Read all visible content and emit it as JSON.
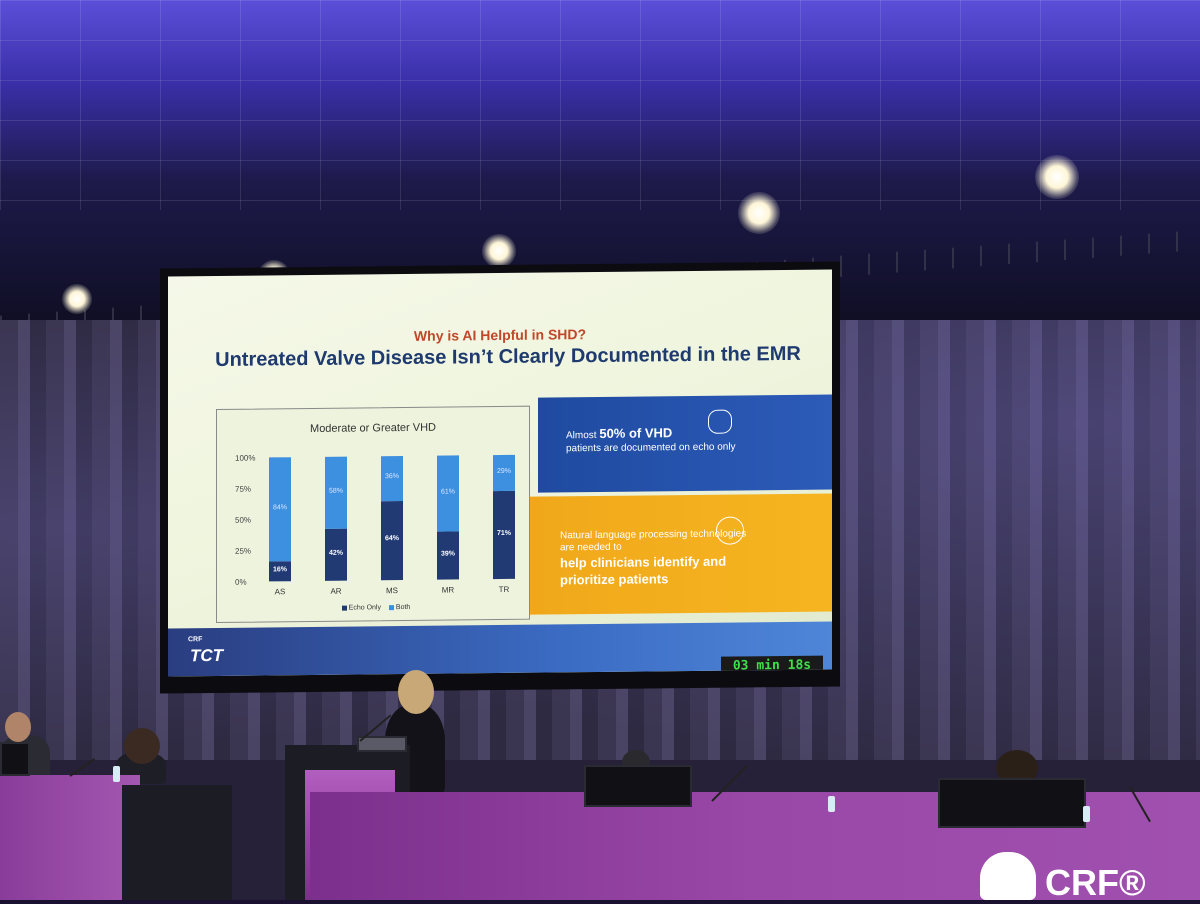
{
  "slide": {
    "subtitle": "Why is AI Helpful in SHD?",
    "title": "Untreated Valve Disease Isn’t Clearly Documented in the EMR",
    "panel_blue": {
      "lead": "Almost ",
      "highlight": "50% of VHD",
      "rest": "patients are documented on echo only"
    },
    "panel_gold": {
      "small": "Natural language processing technologies are needed to",
      "big": "help clinicians identify and prioritize patients"
    },
    "logo_small": "CRF",
    "logo_main": "TCT",
    "timer": "03 min 18s"
  },
  "chart_data": {
    "type": "bar",
    "title": "Moderate or Greater VHD",
    "categories": [
      "AS",
      "AR",
      "MS",
      "MR",
      "TR"
    ],
    "series": [
      {
        "name": "Echo Only",
        "values": [
          16,
          42,
          64,
          39,
          71
        ],
        "color": "#213a74"
      },
      {
        "name": "Both",
        "values": [
          84,
          58,
          36,
          61,
          29
        ],
        "color": "#3d8fe0"
      }
    ],
    "yticks": [
      "100%",
      "75%",
      "50%",
      "25%",
      "0%"
    ],
    "ylim": [
      0,
      100
    ],
    "stacked": true,
    "legend": "bottom"
  },
  "stage": {
    "brand": "CRF®"
  },
  "colors": {
    "ceiling": "#4a3fc8",
    "table": "#8f3f9e",
    "slide_navy": "#1e3a6e",
    "gold": "#f2ad1c"
  }
}
